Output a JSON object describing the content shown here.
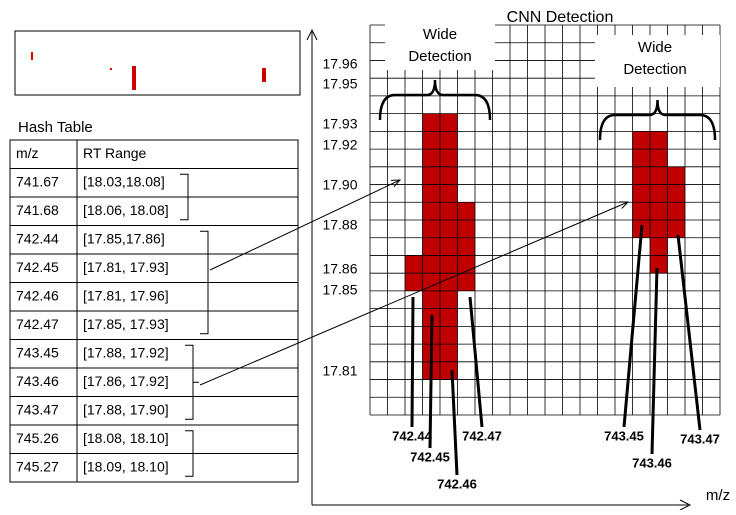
{
  "hash_table": {
    "title": "Hash Table",
    "headers": [
      "m/z",
      "RT Range"
    ],
    "rows": [
      [
        "741.67",
        "[18.03,18.08]"
      ],
      [
        "741.68",
        "[18.06, 18.08]"
      ],
      [
        "742.44",
        "[17.85,17.86]"
      ],
      [
        "742.45",
        "[17.81, 17.93]"
      ],
      [
        "742.46",
        "[17.81, 17.96]"
      ],
      [
        "742.47",
        "[17.85, 17.93]"
      ],
      [
        "743.45",
        "[17.88, 17.92]"
      ],
      [
        "743.46",
        "[17.86, 17.92]"
      ],
      [
        "743.47",
        "[17.88, 17.90]"
      ],
      [
        "745.26",
        "[18.08, 18.10]"
      ],
      [
        "745.27",
        "[18.09, 18.10]"
      ]
    ]
  },
  "detection": {
    "title": "CNN Detection",
    "x_axis_label": "m/z",
    "wide_labels": [
      [
        "Wide",
        "Detection"
      ],
      [
        "Wide",
        "Detection"
      ]
    ],
    "rt_labels": [
      "17.96",
      "17.95",
      "17.93",
      "17.92",
      "17.90",
      "17.88",
      "17.86",
      "17.85",
      "17.81"
    ],
    "mz_labels": [
      "742.44",
      "742.45",
      "742.46",
      "742.47",
      "743.45",
      "743.46",
      "743.47"
    ]
  }
}
